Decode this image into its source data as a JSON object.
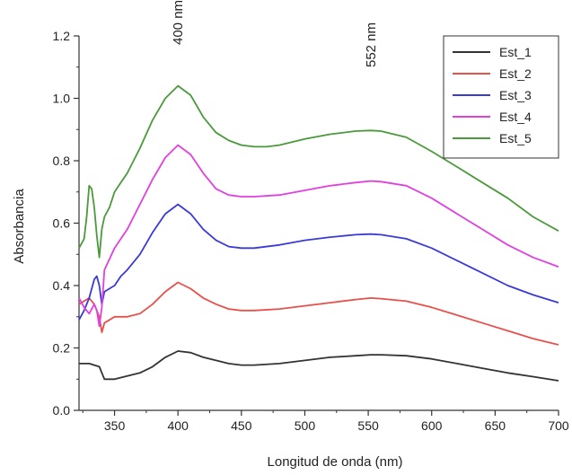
{
  "chart_data": {
    "type": "line",
    "title": "",
    "xlabel": "Longitud de onda (nm)",
    "ylabel": "Absorbancia",
    "xlim": [
      322,
      700
    ],
    "ylim": [
      0.0,
      1.2
    ],
    "xticks": [
      350,
      400,
      450,
      500,
      550,
      600,
      650,
      700
    ],
    "xtick_labels": [
      "350",
      "400",
      "450",
      "500",
      "550",
      "600",
      "650",
      "700"
    ],
    "yticks": [
      0.0,
      0.2,
      0.4,
      0.6,
      0.8,
      1.0,
      1.2
    ],
    "ytick_labels": [
      "0.0",
      "0.2",
      "0.4",
      "0.6",
      "0.8",
      "1.0",
      "1.2"
    ],
    "grid": false,
    "legend_position": "top-right",
    "annotations": [
      {
        "text": "400 nm",
        "x": 400
      },
      {
        "text": "552 nm",
        "x": 552
      }
    ],
    "series": [
      {
        "name": "Est_1",
        "color": "#333333",
        "x": [
          322,
          330,
          338,
          342,
          350,
          360,
          370,
          380,
          390,
          400,
          410,
          420,
          430,
          440,
          450,
          460,
          480,
          500,
          520,
          540,
          552,
          560,
          580,
          600,
          620,
          640,
          660,
          680,
          700
        ],
        "y": [
          0.15,
          0.15,
          0.14,
          0.1,
          0.1,
          0.11,
          0.12,
          0.14,
          0.17,
          0.19,
          0.185,
          0.17,
          0.16,
          0.15,
          0.145,
          0.145,
          0.15,
          0.16,
          0.17,
          0.175,
          0.178,
          0.178,
          0.175,
          0.165,
          0.15,
          0.135,
          0.12,
          0.108,
          0.095
        ]
      },
      {
        "name": "Est_2",
        "color": "#e8504a",
        "x": [
          322,
          330,
          334,
          338,
          340,
          342,
          350,
          360,
          370,
          380,
          390,
          400,
          410,
          420,
          430,
          440,
          450,
          460,
          480,
          500,
          520,
          540,
          552,
          560,
          580,
          600,
          620,
          640,
          660,
          680,
          700
        ],
        "y": [
          0.34,
          0.36,
          0.34,
          0.3,
          0.25,
          0.28,
          0.3,
          0.3,
          0.31,
          0.34,
          0.38,
          0.41,
          0.39,
          0.36,
          0.34,
          0.325,
          0.32,
          0.32,
          0.325,
          0.335,
          0.345,
          0.355,
          0.36,
          0.358,
          0.35,
          0.33,
          0.305,
          0.28,
          0.255,
          0.23,
          0.21
        ]
      },
      {
        "name": "Est_3",
        "color": "#3a3ad8",
        "x": [
          322,
          326,
          330,
          334,
          336,
          338,
          340,
          342,
          350,
          355,
          360,
          370,
          380,
          390,
          400,
          410,
          420,
          430,
          440,
          450,
          460,
          480,
          500,
          520,
          540,
          552,
          560,
          580,
          600,
          620,
          640,
          660,
          680,
          700
        ],
        "y": [
          0.29,
          0.32,
          0.36,
          0.42,
          0.43,
          0.4,
          0.34,
          0.38,
          0.4,
          0.43,
          0.45,
          0.5,
          0.57,
          0.63,
          0.66,
          0.63,
          0.58,
          0.545,
          0.525,
          0.52,
          0.52,
          0.53,
          0.545,
          0.555,
          0.563,
          0.565,
          0.563,
          0.55,
          0.52,
          0.48,
          0.44,
          0.4,
          0.37,
          0.345
        ]
      },
      {
        "name": "Est_4",
        "color": "#e040e0",
        "x": [
          322,
          326,
          330,
          334,
          336,
          338,
          340,
          342,
          350,
          355,
          360,
          370,
          380,
          390,
          400,
          410,
          420,
          430,
          440,
          450,
          460,
          480,
          500,
          520,
          540,
          552,
          560,
          580,
          600,
          620,
          640,
          660,
          680,
          700
        ],
        "y": [
          0.36,
          0.33,
          0.31,
          0.34,
          0.32,
          0.27,
          0.33,
          0.45,
          0.52,
          0.55,
          0.58,
          0.66,
          0.74,
          0.81,
          0.85,
          0.82,
          0.76,
          0.71,
          0.69,
          0.685,
          0.685,
          0.69,
          0.705,
          0.72,
          0.73,
          0.735,
          0.733,
          0.72,
          0.68,
          0.63,
          0.58,
          0.53,
          0.49,
          0.46
        ]
      },
      {
        "name": "Est_5",
        "color": "#4a9a3a",
        "x": [
          322,
          326,
          328,
          330,
          332,
          334,
          336,
          338,
          340,
          342,
          346,
          350,
          355,
          360,
          370,
          380,
          390,
          400,
          410,
          420,
          430,
          440,
          450,
          460,
          470,
          480,
          500,
          520,
          540,
          552,
          560,
          580,
          600,
          620,
          640,
          660,
          680,
          700
        ],
        "y": [
          0.52,
          0.55,
          0.62,
          0.72,
          0.71,
          0.65,
          0.56,
          0.49,
          0.58,
          0.62,
          0.65,
          0.7,
          0.73,
          0.76,
          0.84,
          0.93,
          1.0,
          1.04,
          1.01,
          0.94,
          0.89,
          0.865,
          0.85,
          0.845,
          0.845,
          0.85,
          0.87,
          0.885,
          0.895,
          0.897,
          0.895,
          0.875,
          0.83,
          0.78,
          0.73,
          0.68,
          0.62,
          0.575
        ]
      }
    ]
  }
}
